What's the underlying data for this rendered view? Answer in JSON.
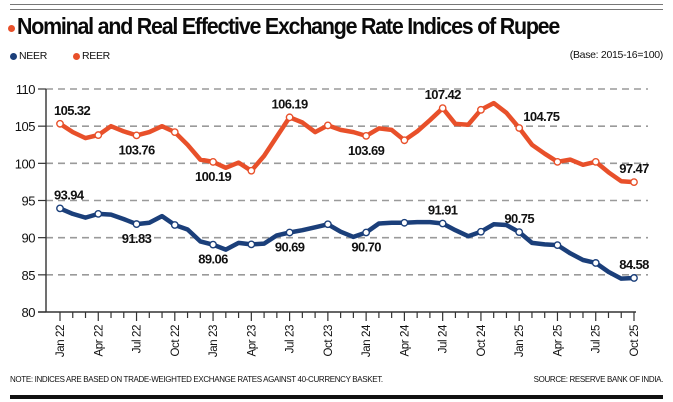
{
  "colors": {
    "title_dot": "#E8502A",
    "neer": "#1B3F7A",
    "reer": "#E8502A",
    "grid": "#9a9a9a",
    "axis": "#333333"
  },
  "header": {
    "title": "Nominal and Real Effective Exchange Rate Indices of Rupee",
    "base_note": "(Base: 2015-16=100)"
  },
  "legend": [
    {
      "name": "NEER",
      "color": "#1B3F7A"
    },
    {
      "name": "REER",
      "color": "#E8502A"
    }
  ],
  "footer": {
    "note": "NOTE: INDICES ARE BASED ON TRADE-WEIGHTED EXCHANGE RATES AGAINST 40-CURRENCY BASKET.",
    "source": "SOURCE: RESERVE BANK OF INDIA."
  },
  "chart_data": {
    "type": "line",
    "title": "Nominal and Real Effective Exchange Rate Indices of Rupee",
    "subtitle": "(Base: 2015-16=100)",
    "xlabel": "",
    "ylabel": "",
    "ylim": [
      80,
      110
    ],
    "yticks": [
      80,
      85,
      90,
      95,
      100,
      105,
      110
    ],
    "grid": true,
    "legend_position": "top-left",
    "x": [
      "Jan 22",
      "Feb 22",
      "Mar 22",
      "Apr 22",
      "May 22",
      "Jun 22",
      "Jul 22",
      "Aug 22",
      "Sep 22",
      "Oct 22",
      "Nov 22",
      "Dec 22",
      "Jan 23",
      "Feb 23",
      "Mar 23",
      "Apr 23",
      "May 23",
      "Jun 23",
      "Jul 23",
      "Aug 23",
      "Sep 23",
      "Oct 23",
      "Nov 23",
      "Dec 23",
      "Jan 24",
      "Feb 24",
      "Mar 24",
      "Apr 24",
      "May 24",
      "Jun 24",
      "Jul 24",
      "Aug 24",
      "Sep 24",
      "Oct 24",
      "Nov 24",
      "Dec 24",
      "Jan 25",
      "Feb 25",
      "Mar 25",
      "Apr 25",
      "May 25",
      "Jun 25",
      "Jul 25",
      "Aug 25",
      "Sep 25",
      "Oct 25"
    ],
    "xtick_labels": [
      "Jan 22",
      "Apr 22",
      "Jul 22",
      "Oct 22",
      "Jan 23",
      "Apr 23",
      "Jul 23",
      "Oct 23",
      "Jan 24",
      "Apr 24",
      "Jul 24",
      "Oct 24",
      "Jan 25",
      "Apr 25",
      "Jul 25",
      "Oct 25"
    ],
    "series": [
      {
        "name": "REER",
        "values": [
          105.32,
          104.2,
          103.4,
          103.8,
          105.0,
          104.3,
          103.76,
          104.2,
          105.0,
          104.2,
          102.5,
          100.5,
          100.19,
          99.4,
          100.1,
          99.0,
          101.0,
          103.6,
          106.19,
          105.5,
          104.2,
          105.1,
          104.5,
          104.2,
          103.69,
          104.7,
          104.5,
          103.1,
          104.3,
          105.8,
          107.42,
          105.3,
          105.2,
          107.2,
          108.1,
          106.8,
          104.75,
          102.5,
          101.3,
          100.2,
          100.5,
          99.8,
          100.2,
          98.8,
          97.6,
          97.47
        ],
        "labels": [
          {
            "index": 0,
            "text": "105.32",
            "pos": "above"
          },
          {
            "index": 6,
            "text": "103.76",
            "pos": "below"
          },
          {
            "index": 12,
            "text": "100.19",
            "pos": "below"
          },
          {
            "index": 18,
            "text": "106.19",
            "pos": "above"
          },
          {
            "index": 24,
            "text": "103.69",
            "pos": "below"
          },
          {
            "index": 30,
            "text": "107.42",
            "pos": "above"
          },
          {
            "index": 36,
            "text": "104.75",
            "pos": "above-right"
          },
          {
            "index": 45,
            "text": "97.47",
            "pos": "above"
          }
        ]
      },
      {
        "name": "NEER",
        "values": [
          93.94,
          93.2,
          92.7,
          93.2,
          93.1,
          92.5,
          91.83,
          92.0,
          92.9,
          91.7,
          91.1,
          89.5,
          89.06,
          88.4,
          89.3,
          89.1,
          89.2,
          90.3,
          90.69,
          91.0,
          91.4,
          91.8,
          90.8,
          90.1,
          90.7,
          91.9,
          92.0,
          92.0,
          92.1,
          92.1,
          91.91,
          91.0,
          90.2,
          90.8,
          91.8,
          91.7,
          90.75,
          89.3,
          89.1,
          89.0,
          87.9,
          87.0,
          86.6,
          85.4,
          84.5,
          84.58
        ],
        "labels": [
          {
            "index": 0,
            "text": "93.94",
            "pos": "above"
          },
          {
            "index": 6,
            "text": "91.83",
            "pos": "below"
          },
          {
            "index": 12,
            "text": "89.06",
            "pos": "below"
          },
          {
            "index": 18,
            "text": "90.69",
            "pos": "below"
          },
          {
            "index": 24,
            "text": "90.70",
            "pos": "below"
          },
          {
            "index": 30,
            "text": "91.91",
            "pos": "above"
          },
          {
            "index": 36,
            "text": "90.75",
            "pos": "above"
          },
          {
            "index": 45,
            "text": "84.58",
            "pos": "above"
          }
        ]
      }
    ]
  }
}
